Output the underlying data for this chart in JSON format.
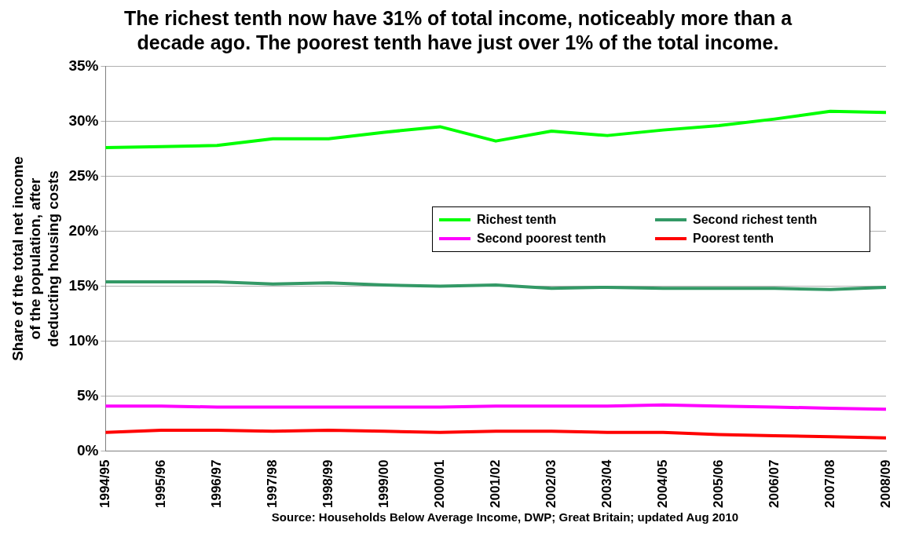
{
  "chart_data": {
    "type": "line",
    "title": "The richest tenth now have 31% of total income, noticeably more than a decade ago.  The poorest tenth have just over 1% of the total income.",
    "ylabel": "Share of the total net income of the population, after deducting housing costs",
    "annotations": [
      "Source: Households Below Average Income, DWP; Great Britain; updated Aug 2010"
    ],
    "categories": [
      "1994/95",
      "1995/96",
      "1996/97",
      "1997/98",
      "1998/99",
      "1999/00",
      "2000/01",
      "2001/02",
      "2002/03",
      "2003/04",
      "2004/05",
      "2005/06",
      "2006/07",
      "2007/08",
      "2008/09"
    ],
    "series": [
      {
        "name": "Richest tenth",
        "color": "#00ff00",
        "values": [
          27.6,
          27.7,
          27.8,
          28.4,
          28.4,
          29.0,
          29.5,
          28.2,
          29.1,
          28.7,
          29.2,
          29.6,
          30.2,
          30.9,
          30.8
        ]
      },
      {
        "name": "Second richest tenth",
        "color": "#339966",
        "values": [
          15.4,
          15.4,
          15.4,
          15.2,
          15.3,
          15.1,
          15.0,
          15.1,
          14.8,
          14.9,
          14.8,
          14.8,
          14.8,
          14.7,
          14.9
        ]
      },
      {
        "name": "Second poorest tenth",
        "color": "#ff00ff",
        "values": [
          4.1,
          4.1,
          4.0,
          4.0,
          4.0,
          4.0,
          4.0,
          4.1,
          4.1,
          4.1,
          4.2,
          4.1,
          4.0,
          3.9,
          3.8
        ]
      },
      {
        "name": "Poorest tenth",
        "color": "#ff0000",
        "values": [
          1.7,
          1.9,
          1.9,
          1.8,
          1.9,
          1.8,
          1.7,
          1.8,
          1.8,
          1.7,
          1.7,
          1.5,
          1.4,
          1.3,
          1.2
        ]
      }
    ],
    "ylim": [
      0,
      35
    ],
    "yticks": [
      {
        "value": 0,
        "label": "0%"
      },
      {
        "value": 5,
        "label": "5%"
      },
      {
        "value": 10,
        "label": "10%"
      },
      {
        "value": 15,
        "label": "15%"
      },
      {
        "value": 20,
        "label": "20%"
      },
      {
        "value": 25,
        "label": "25%"
      },
      {
        "value": 30,
        "label": "30%"
      },
      {
        "value": 35,
        "label": "35%"
      }
    ],
    "grid": "y",
    "legend": "right",
    "marker": "none",
    "line_style": "solid"
  }
}
